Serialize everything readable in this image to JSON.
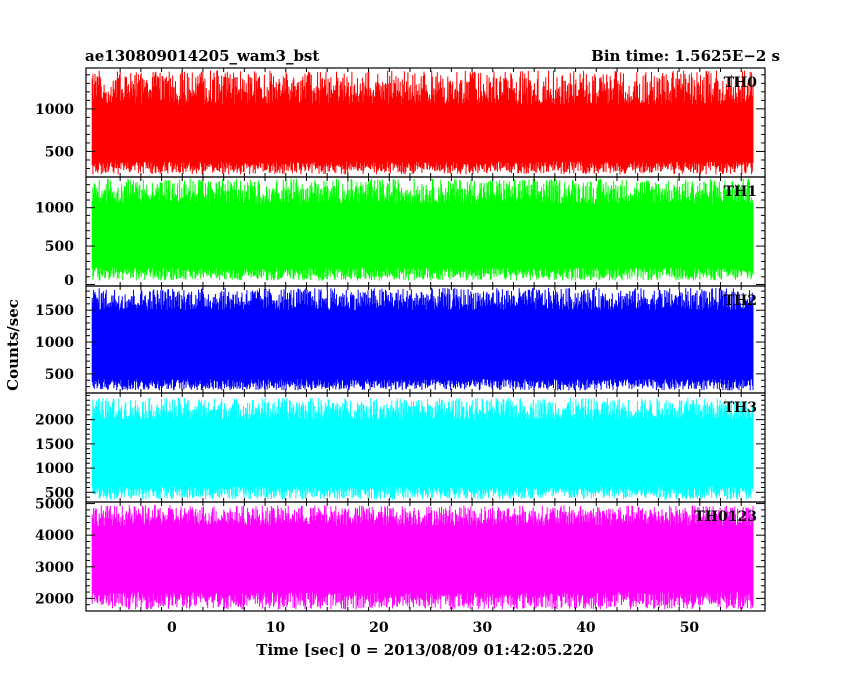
{
  "header": {
    "left_title": "ae130809014205_wam3_bst",
    "right_title": "Bin time: 1.5625E−2 s"
  },
  "chart_data": {
    "type": "line",
    "title": "ae130809014205_wam3_bst",
    "subtitle": "Bin time: 1.5625E−2 s",
    "xlabel": "Time [sec] 0 = 2013/08/09 01:42:05.220",
    "ylabel": "Counts/sec",
    "xlim": [
      -8.3,
      57.3
    ],
    "x_range_data": [
      -7.7,
      56.2
    ],
    "bin_time_s": 0.015625,
    "xticks": [
      0,
      10,
      20,
      30,
      40,
      50
    ],
    "grid": false,
    "legend": "none",
    "panels": [
      {
        "name": "TH0",
        "color": "#ff0000",
        "ylim": [
          200,
          1480
        ],
        "yticks": [
          500,
          1000
        ],
        "baseline": 720,
        "low_envelope": [
          230,
          380
        ],
        "high_envelope": [
          1050,
          1450
        ]
      },
      {
        "name": "TH1",
        "color": "#00ff00",
        "ylim": [
          -20,
          1400
        ],
        "yticks": [
          0,
          500,
          1000
        ],
        "baseline": 700,
        "low_envelope": [
          50,
          220
        ],
        "high_envelope": [
          1050,
          1380
        ]
      },
      {
        "name": "TH2",
        "color": "#0000ff",
        "ylim": [
          200,
          1880
        ],
        "yticks": [
          500,
          1000,
          1500
        ],
        "baseline": 1030,
        "low_envelope": [
          240,
          420
        ],
        "high_envelope": [
          1500,
          1850
        ]
      },
      {
        "name": "TH3",
        "color": "#00ffff",
        "ylim": [
          300,
          2550
        ],
        "yticks": [
          500,
          1000,
          1500,
          2000
        ],
        "baseline": 1380,
        "low_envelope": [
          350,
          620
        ],
        "high_envelope": [
          2000,
          2450
        ]
      },
      {
        "name": "TH0123",
        "color": "#ff00ff",
        "ylim": [
          1600,
          5050
        ],
        "yticks": [
          2000,
          3000,
          4000,
          5000
        ],
        "baseline": 3400,
        "low_envelope": [
          1650,
          2200
        ],
        "high_envelope": [
          4300,
          4950
        ]
      }
    ]
  }
}
